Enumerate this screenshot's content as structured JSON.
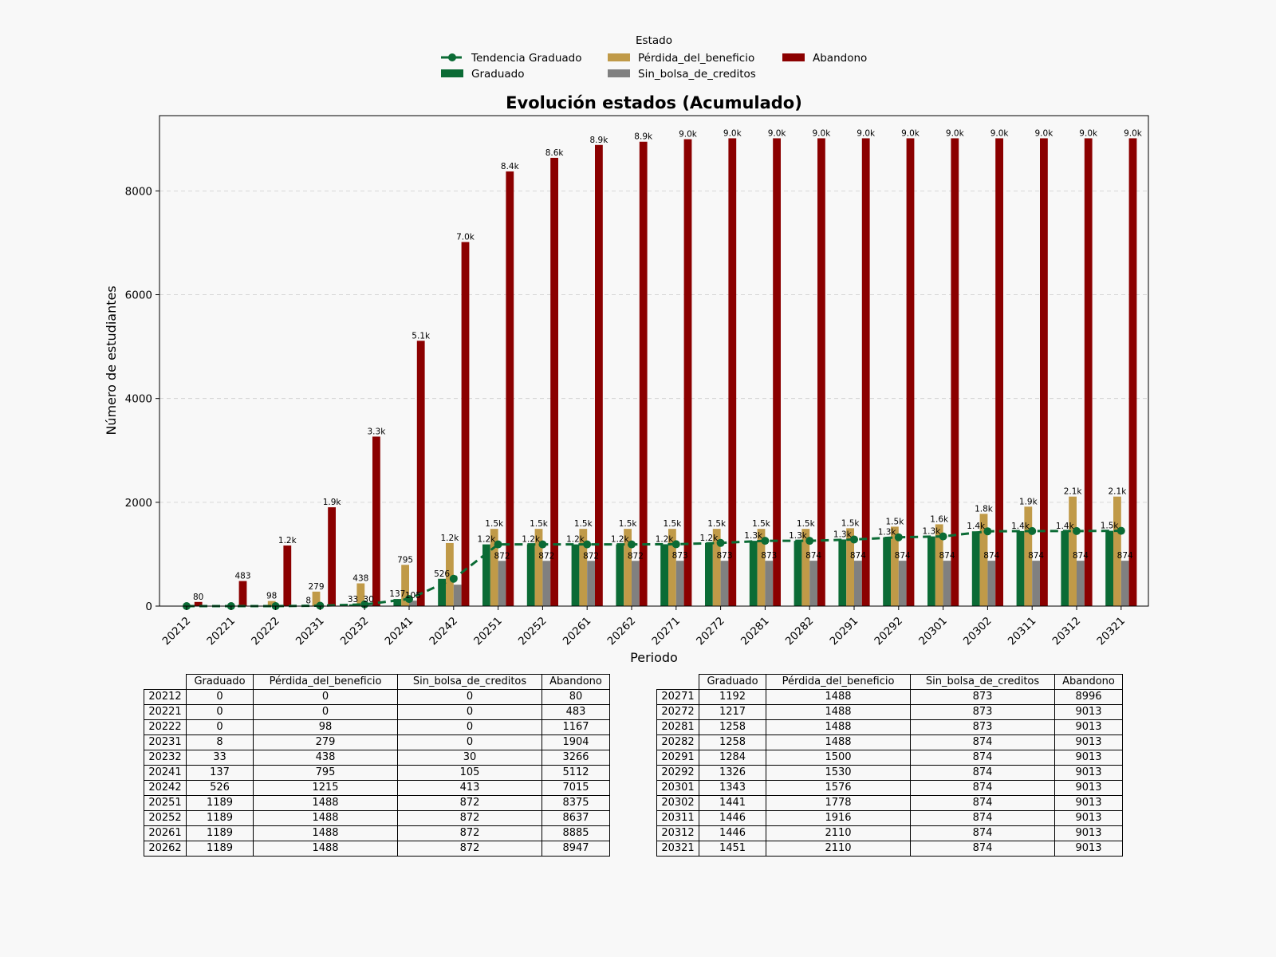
{
  "chart_data": {
    "type": "bar",
    "title": "Evolución estados (Acumulado)",
    "xlabel": "Periodo",
    "ylabel": "Número de estudiantes",
    "ylim": [
      0,
      9450
    ],
    "yticks": [
      0,
      2000,
      4000,
      6000,
      8000
    ],
    "grid": "y-dashed",
    "legend": {
      "title": "Estado",
      "placement": "top-center",
      "entries": [
        "Tendencia Graduado",
        "Graduado",
        "Pérdida_del_beneficio",
        "Sin_bolsa_de_creditos",
        "Abandono"
      ]
    },
    "categories": [
      "20212",
      "20221",
      "20222",
      "20231",
      "20232",
      "20241",
      "20242",
      "20251",
      "20252",
      "20261",
      "20262",
      "20271",
      "20272",
      "20281",
      "20282",
      "20291",
      "20292",
      "20301",
      "20302",
      "20311",
      "20312",
      "20321"
    ],
    "series": [
      {
        "name": "Graduado",
        "color": "#0b6b35",
        "values": [
          0,
          0,
          0,
          8,
          33,
          137,
          526,
          1189,
          1189,
          1189,
          1189,
          1192,
          1217,
          1258,
          1258,
          1284,
          1326,
          1343,
          1441,
          1446,
          1446,
          1451
        ],
        "labels": [
          "",
          "",
          "",
          "8",
          "33",
          "137",
          "526",
          "1.2k",
          "1.2k",
          "1.2k",
          "1.2k",
          "1.2k",
          "1.2k",
          "1.3k",
          "1.3k",
          "1.3k",
          "1.3k",
          "1.3k",
          "1.4k",
          "1.4k",
          "1.4k",
          "1.5k"
        ]
      },
      {
        "name": "Pérdida_del_beneficio",
        "color": "#c09a48",
        "values": [
          0,
          0,
          98,
          279,
          438,
          795,
          1215,
          1488,
          1488,
          1488,
          1488,
          1488,
          1488,
          1488,
          1488,
          1500,
          1530,
          1576,
          1778,
          1916,
          2110,
          2110
        ],
        "labels": [
          "",
          "",
          "98",
          "279",
          "438",
          "795",
          "1.2k",
          "1.5k",
          "1.5k",
          "1.5k",
          "1.5k",
          "1.5k",
          "1.5k",
          "1.5k",
          "1.5k",
          "1.5k",
          "1.5k",
          "1.6k",
          "1.8k",
          "1.9k",
          "2.1k",
          "2.1k"
        ]
      },
      {
        "name": "Sin_bolsa_de_creditos",
        "color": "#808080",
        "values": [
          0,
          0,
          0,
          0,
          30,
          105,
          413,
          872,
          872,
          872,
          872,
          873,
          873,
          873,
          874,
          874,
          874,
          874,
          874,
          874,
          874,
          874
        ],
        "labels": [
          "",
          "",
          "",
          "",
          "30",
          "105",
          "",
          "872",
          "872",
          "872",
          "872",
          "873",
          "873",
          "873",
          "874",
          "874",
          "874",
          "874",
          "874",
          "874",
          "874",
          "874"
        ]
      },
      {
        "name": "Abandono",
        "color": "#8b0000",
        "values": [
          80,
          483,
          1167,
          1904,
          3266,
          5112,
          7015,
          8375,
          8637,
          8885,
          8947,
          8996,
          9013,
          9013,
          9013,
          9013,
          9013,
          9013,
          9013,
          9013,
          9013,
          9013
        ],
        "labels": [
          "80",
          "483",
          "1.2k",
          "1.9k",
          "3.3k",
          "5.1k",
          "7.0k",
          "8.4k",
          "8.6k",
          "8.9k",
          "8.9k",
          "9.0k",
          "9.0k",
          "9.0k",
          "9.0k",
          "9.0k",
          "9.0k",
          "9.0k",
          "9.0k",
          "9.0k",
          "9.0k",
          "9.0k"
        ]
      }
    ],
    "trend": {
      "name": "Tendencia Graduado",
      "color": "#0b6b35",
      "style": "dashed",
      "marker": "circle",
      "source": "Graduado"
    }
  },
  "tables": {
    "columns": [
      "Graduado",
      "Pérdida_del_beneficio",
      "Sin_bolsa_de_creditos",
      "Abandono"
    ],
    "left": [
      [
        "20212",
        "0",
        "0",
        "0",
        "80"
      ],
      [
        "20221",
        "0",
        "0",
        "0",
        "483"
      ],
      [
        "20222",
        "0",
        "98",
        "0",
        "1167"
      ],
      [
        "20231",
        "8",
        "279",
        "0",
        "1904"
      ],
      [
        "20232",
        "33",
        "438",
        "30",
        "3266"
      ],
      [
        "20241",
        "137",
        "795",
        "105",
        "5112"
      ],
      [
        "20242",
        "526",
        "1215",
        "413",
        "7015"
      ],
      [
        "20251",
        "1189",
        "1488",
        "872",
        "8375"
      ],
      [
        "20252",
        "1189",
        "1488",
        "872",
        "8637"
      ],
      [
        "20261",
        "1189",
        "1488",
        "872",
        "8885"
      ],
      [
        "20262",
        "1189",
        "1488",
        "872",
        "8947"
      ]
    ],
    "right": [
      [
        "20271",
        "1192",
        "1488",
        "873",
        "8996"
      ],
      [
        "20272",
        "1217",
        "1488",
        "873",
        "9013"
      ],
      [
        "20281",
        "1258",
        "1488",
        "873",
        "9013"
      ],
      [
        "20282",
        "1258",
        "1488",
        "874",
        "9013"
      ],
      [
        "20291",
        "1284",
        "1500",
        "874",
        "9013"
      ],
      [
        "20292",
        "1326",
        "1530",
        "874",
        "9013"
      ],
      [
        "20301",
        "1343",
        "1576",
        "874",
        "9013"
      ],
      [
        "20302",
        "1441",
        "1778",
        "874",
        "9013"
      ],
      [
        "20311",
        "1446",
        "1916",
        "874",
        "9013"
      ],
      [
        "20312",
        "1446",
        "2110",
        "874",
        "9013"
      ],
      [
        "20321",
        "1451",
        "2110",
        "874",
        "9013"
      ]
    ]
  }
}
